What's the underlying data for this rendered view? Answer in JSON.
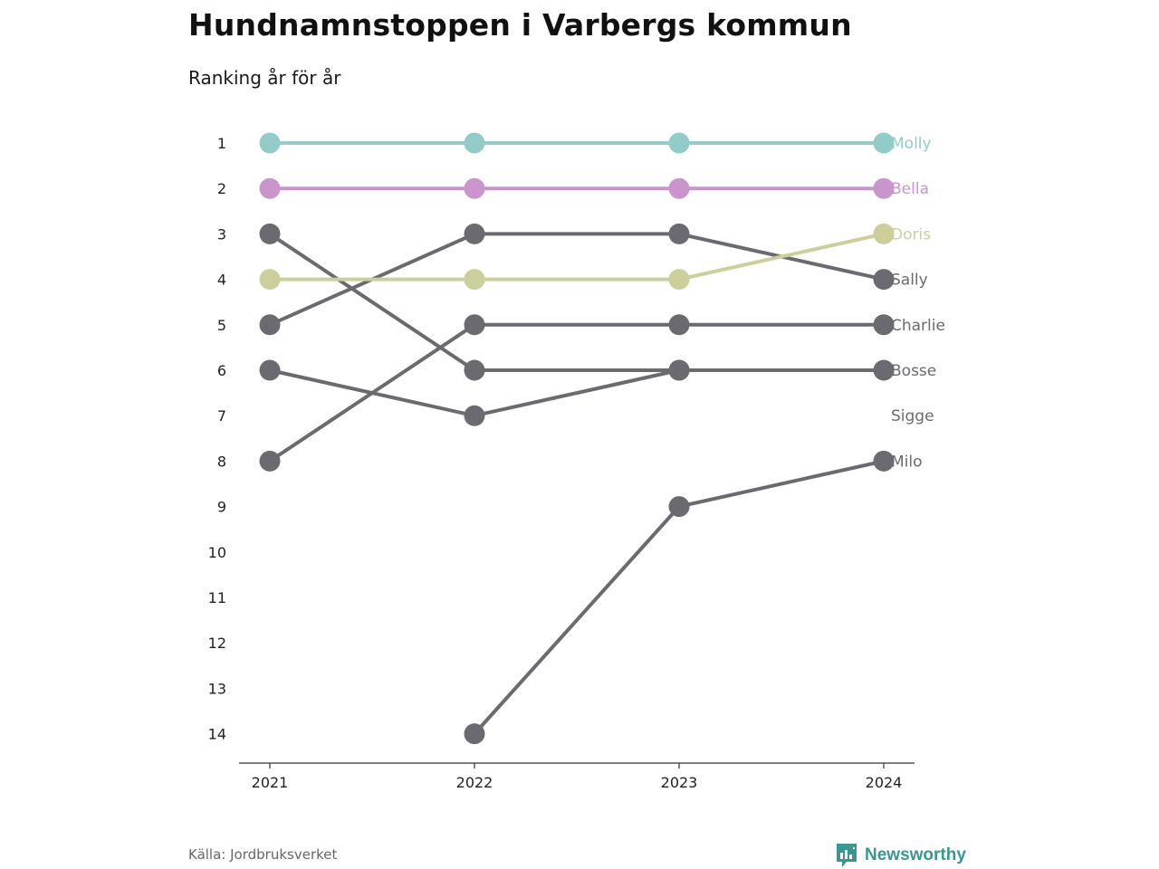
{
  "header": {
    "title": "Hundnamnstoppen i Varbergs kommun",
    "subtitle": "Ranking år för år"
  },
  "footer": {
    "source": "Källa: Jordbruksverket",
    "brand": "Newsworthy",
    "brand_icon": "bar-chart-speech-bubble-icon"
  },
  "colors": {
    "default_line": "#6b6a70",
    "highlight_molly": "#93cbc9",
    "highlight_bella": "#c995cc",
    "highlight_doris": "#cccf9c",
    "brand": "#3a9691"
  },
  "chart_data": {
    "type": "line",
    "x": [
      "2021",
      "2022",
      "2023",
      "2024"
    ],
    "y_ticks": [
      "1",
      "2",
      "3",
      "4",
      "5",
      "6",
      "7",
      "8",
      "9",
      "10",
      "11",
      "12",
      "13",
      "14"
    ],
    "ylim": [
      1,
      14
    ],
    "y_inverted": true,
    "grid": false,
    "series": [
      {
        "name": "Molly",
        "ranks": [
          1,
          1,
          1,
          1
        ],
        "color": "#93cbc9"
      },
      {
        "name": "Bella",
        "ranks": [
          2,
          2,
          2,
          2
        ],
        "color": "#c995cc"
      },
      {
        "name": "Doris",
        "ranks": [
          4,
          4,
          4,
          3
        ],
        "color": "#cccf9c"
      },
      {
        "name": "Sally",
        "ranks": [
          5,
          3,
          3,
          4
        ],
        "color": "#6b6a70"
      },
      {
        "name": "Charlie",
        "ranks": [
          8,
          5,
          5,
          5
        ],
        "color": "#6b6a70"
      },
      {
        "name": "Bosse",
        "ranks": [
          3,
          6,
          6,
          6
        ],
        "color": "#6b6a70"
      },
      {
        "name": "Sigge",
        "ranks": [
          6,
          7,
          6,
          null
        ],
        "color": "#6b6a70"
      },
      {
        "name": "Milo",
        "ranks": [
          null,
          14,
          9,
          8
        ],
        "color": "#6b6a70"
      }
    ]
  }
}
